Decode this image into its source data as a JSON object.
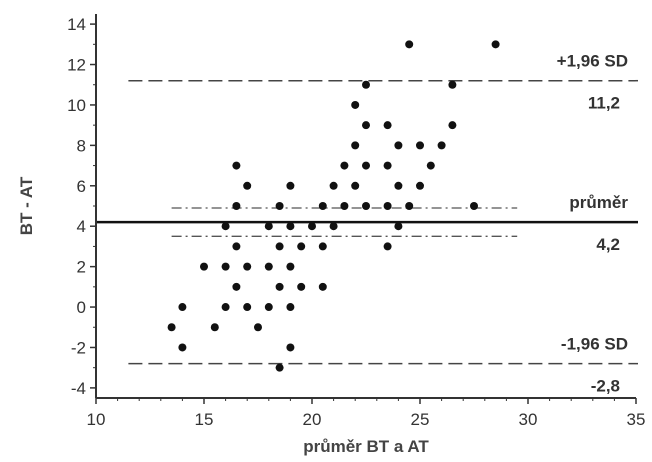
{
  "chart_data": {
    "type": "scatter",
    "title": "",
    "xlabel": "průměr BT a AT",
    "ylabel": "BT - AT",
    "xlim": [
      10,
      35
    ],
    "ylim": [
      -4.5,
      14.5
    ],
    "xticks": [
      10,
      15,
      20,
      25,
      30,
      35
    ],
    "yticks": [
      -4,
      -2,
      0,
      2,
      4,
      6,
      8,
      10,
      12,
      14
    ],
    "x_tick_labels": [
      "10",
      "15",
      "20",
      "25",
      "30",
      "35"
    ],
    "y_tick_labels": [
      "-4",
      "-2",
      "0",
      "2",
      "4",
      "6",
      "8",
      "10",
      "12",
      "14"
    ],
    "grid": false,
    "series": [
      {
        "points": [
          [
            13.5,
            -1
          ],
          [
            14,
            0
          ],
          [
            14,
            -2
          ],
          [
            15,
            2
          ],
          [
            15.5,
            -1
          ],
          [
            16,
            4
          ],
          [
            16,
            2
          ],
          [
            16,
            0
          ],
          [
            16.5,
            7
          ],
          [
            16.5,
            5
          ],
          [
            16.5,
            3
          ],
          [
            16.5,
            1
          ],
          [
            17,
            6
          ],
          [
            17,
            2
          ],
          [
            17,
            0
          ],
          [
            17.5,
            -1
          ],
          [
            18,
            4
          ],
          [
            18,
            2
          ],
          [
            18,
            0
          ],
          [
            18.5,
            5
          ],
          [
            18.5,
            3
          ],
          [
            18.5,
            1
          ],
          [
            18.5,
            -3
          ],
          [
            19,
            6
          ],
          [
            19,
            4
          ],
          [
            19,
            2
          ],
          [
            19,
            0
          ],
          [
            19,
            -2
          ],
          [
            19.5,
            3
          ],
          [
            19.5,
            1
          ],
          [
            20,
            4
          ],
          [
            20.5,
            5
          ],
          [
            20.5,
            3
          ],
          [
            20.5,
            1
          ],
          [
            21,
            6
          ],
          [
            21,
            4
          ],
          [
            21.5,
            7
          ],
          [
            21.5,
            5
          ],
          [
            22,
            10
          ],
          [
            22,
            8
          ],
          [
            22,
            6
          ],
          [
            22.5,
            11
          ],
          [
            22.5,
            9
          ],
          [
            22.5,
            7
          ],
          [
            22.5,
            5
          ],
          [
            23.5,
            9
          ],
          [
            23.5,
            7
          ],
          [
            23.5,
            5
          ],
          [
            23.5,
            3
          ],
          [
            24,
            8
          ],
          [
            24,
            6
          ],
          [
            24,
            4
          ],
          [
            24.5,
            13
          ],
          [
            24.5,
            5
          ],
          [
            25,
            8
          ],
          [
            25,
            6
          ],
          [
            25.5,
            7
          ],
          [
            26,
            8
          ],
          [
            26.5,
            11
          ],
          [
            26.5,
            9
          ],
          [
            27.5,
            5
          ],
          [
            28.5,
            13
          ]
        ]
      }
    ],
    "reference_lines": [
      {
        "label": "+1,96 SD",
        "value": 11.2,
        "value_label": "11,2",
        "style": "dashed"
      },
      {
        "label": "průměr",
        "value": 4.2,
        "value_label": "4,2",
        "style": "solid"
      },
      {
        "label": "-1,96 SD",
        "value": -2.8,
        "value_label": "-2,8",
        "style": "dashed"
      }
    ],
    "confidence_lines": [
      4.9,
      3.5
    ]
  }
}
